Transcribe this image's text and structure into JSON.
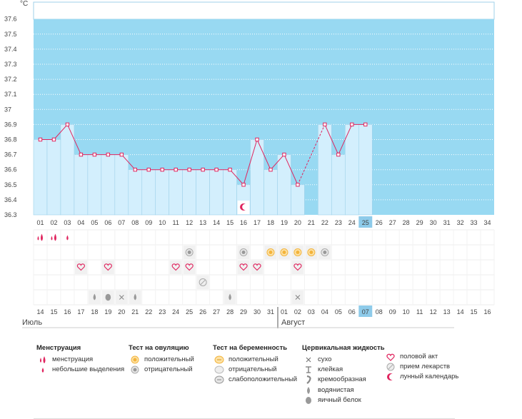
{
  "chart_data": {
    "type": "line",
    "unit": "°C",
    "ylim": [
      36.3,
      37.65
    ],
    "yticks": [
      "36.3",
      "36.4",
      "36.5",
      "36.6",
      "36.7",
      "36.8",
      "36.9",
      "37",
      "37.1",
      "37.2",
      "37.3",
      "37.4",
      "37.5",
      "37.6"
    ],
    "cycle_days": [
      "01",
      "02",
      "03",
      "04",
      "05",
      "06",
      "07",
      "08",
      "09",
      "10",
      "11",
      "12",
      "13",
      "14",
      "15",
      "16",
      "17",
      "18",
      "19",
      "20",
      "21",
      "22",
      "23",
      "24",
      "25",
      "26",
      "27",
      "28",
      "29",
      "30",
      "31",
      "32",
      "33",
      "34"
    ],
    "dates": [
      "14",
      "15",
      "16",
      "17",
      "18",
      "19",
      "20",
      "21",
      "22",
      "23",
      "24",
      "25",
      "26",
      "27",
      "28",
      "29",
      "30",
      "31",
      "01",
      "02",
      "03",
      "04",
      "05",
      "06",
      "07",
      "08",
      "09",
      "10",
      "11",
      "12",
      "13",
      "14",
      "15",
      "16"
    ],
    "weekend_dates": [
      0,
      1,
      7,
      8,
      14,
      15,
      21,
      22,
      28,
      29
    ],
    "today_index": 24,
    "temperatures": [
      36.8,
      36.8,
      36.9,
      36.7,
      36.7,
      36.7,
      36.7,
      36.6,
      36.6,
      36.6,
      36.6,
      36.6,
      36.6,
      36.6,
      36.6,
      36.5,
      36.8,
      36.6,
      36.7,
      36.5,
      null,
      36.9,
      36.7,
      36.9,
      36.9
    ],
    "months": [
      {
        "label": "Июль",
        "start": 0
      },
      {
        "label": "Август",
        "start": 18
      }
    ],
    "markers": {
      "menstruation": [
        {
          "day": 0,
          "kind": "heavy"
        },
        {
          "day": 1,
          "kind": "heavy"
        },
        {
          "day": 2,
          "kind": "light"
        }
      ],
      "ovulation_test": [
        {
          "day": 11,
          "kind": "negative"
        },
        {
          "day": 15,
          "kind": "negative"
        },
        {
          "day": 17,
          "kind": "positive"
        },
        {
          "day": 18,
          "kind": "positive"
        },
        {
          "day": 19,
          "kind": "positive"
        },
        {
          "day": 20,
          "kind": "positive"
        },
        {
          "day": 21,
          "kind": "negative"
        }
      ],
      "intercourse": [
        3,
        5,
        10,
        11,
        15,
        16,
        19
      ],
      "medication": [
        12
      ],
      "cervical_fluid": [
        {
          "day": 4,
          "kind": "watery"
        },
        {
          "day": 5,
          "kind": "egg-white"
        },
        {
          "day": 6,
          "kind": "dry"
        },
        {
          "day": 7,
          "kind": "watery"
        },
        {
          "day": 14,
          "kind": "watery"
        },
        {
          "day": 19,
          "kind": "dry"
        }
      ],
      "lunar": [
        15
      ]
    }
  },
  "legend": {
    "menstruation": {
      "title": "Менструация",
      "items": [
        "менструация",
        "небольшие выделения"
      ]
    },
    "ovulation": {
      "title": "Тест на овуляцию",
      "items": [
        "положительный",
        "отрицательный"
      ]
    },
    "pregnancy": {
      "title": "Тест на беременность",
      "items": [
        "положительный",
        "отрицательный",
        "слабоположительный"
      ]
    },
    "cervical": {
      "title": "Цервикальная жидкость",
      "items": [
        "сухо",
        "клейкая",
        "кремообразная",
        "водянистая",
        "яичный белок"
      ]
    },
    "other": {
      "items": [
        "половой акт",
        "прием лекарств",
        "лунный календарь"
      ]
    }
  },
  "colors": {
    "sky": "#98d9f2",
    "bar": "#d3effd",
    "bar_edge": "#9fd1ea",
    "line": "#e0245e",
    "weekend": "#e0245e",
    "today": "#8ecbea",
    "grid": "#dcdcdc"
  }
}
